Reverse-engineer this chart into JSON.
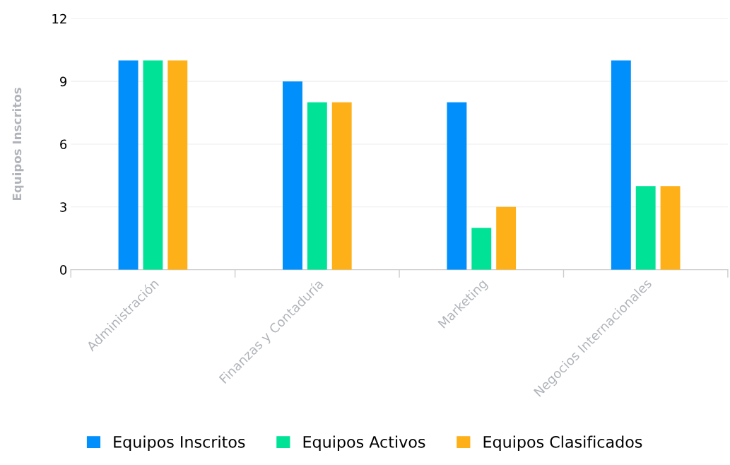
{
  "chart_data": {
    "type": "bar",
    "ylabel": "Equipos Inscritos",
    "categories": [
      "Administración",
      "Finanzas y Contaduría",
      "Marketing",
      "Negocios Internacionales"
    ],
    "series": [
      {
        "name": "Equipos Inscritos",
        "color": "#008ffb",
        "values": [
          10,
          9,
          8,
          10
        ]
      },
      {
        "name": "Equipos Activos",
        "color": "#00e396",
        "values": [
          10,
          8,
          2,
          4
        ]
      },
      {
        "name": "Equipos Clasificados",
        "color": "#feb019",
        "values": [
          10,
          8,
          3,
          4
        ]
      }
    ],
    "ylim": [
      0,
      12
    ],
    "yticks": [
      0,
      3,
      6,
      9,
      12
    ],
    "grid": "y",
    "legend": "bottom"
  }
}
